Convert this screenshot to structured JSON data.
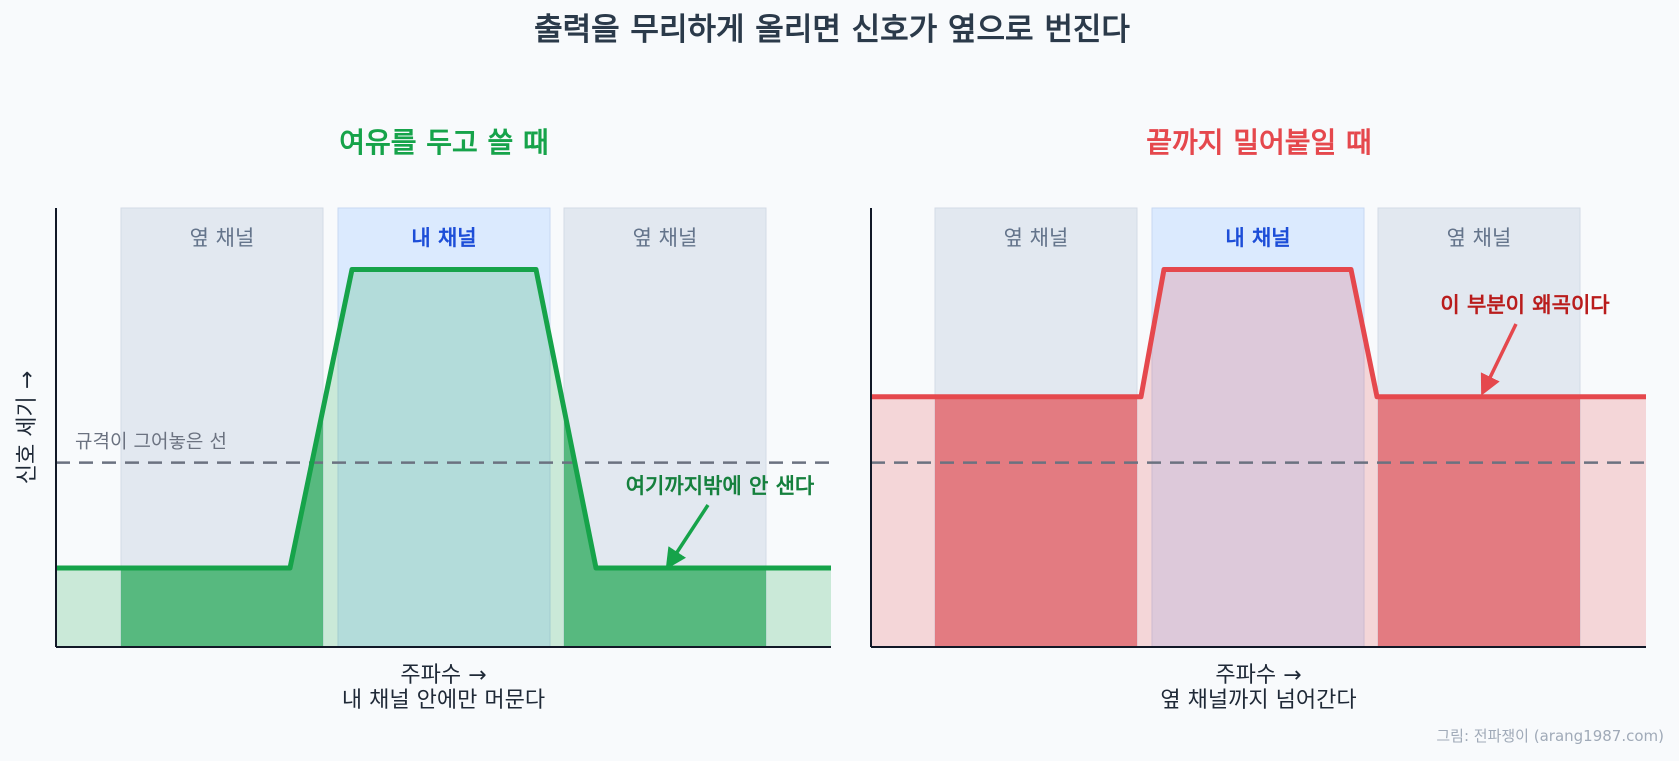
{
  "title": "출력을 무리하게 올리면 신호가 옆으로 번진다",
  "credit": "그림: 전파쟁이 (arang1987.com)",
  "colors": {
    "good": "#16a34a",
    "bad": "#e5484d",
    "my_channel_bg": "#dbeafe",
    "adjacent_channel_bg": "#e2e8f0",
    "limit_line": "#6b7280"
  },
  "chart_data": [
    {
      "type": "area",
      "title": "여유를 두고 쓸 때",
      "xlabel": "주파수 →",
      "xlabel_caption": "내 채널 안에만 머문다",
      "ylabel": "신호 세기 →",
      "channels": [
        "옆 채널",
        "내 채널",
        "옆 채널"
      ],
      "limit_label": "규격이 그어놓은 선",
      "limit_level": 0.42,
      "signal_profile": {
        "outside_level": 0.18,
        "peak_level": 0.86,
        "color": "#16a34a"
      },
      "annotation": "여기까지밖에 안 샌다"
    },
    {
      "type": "area",
      "title": "끝까지 밀어붙일 때",
      "xlabel": "주파수 →",
      "xlabel_caption": "옆 채널까지 넘어간다",
      "ylabel": "",
      "channels": [
        "옆 채널",
        "내 채널",
        "옆 채널"
      ],
      "limit_label": "",
      "limit_level": 0.42,
      "signal_profile": {
        "outside_level": 0.57,
        "peak_level": 0.86,
        "color": "#e5484d"
      },
      "annotation": "이 부분이 왜곡이다"
    }
  ]
}
